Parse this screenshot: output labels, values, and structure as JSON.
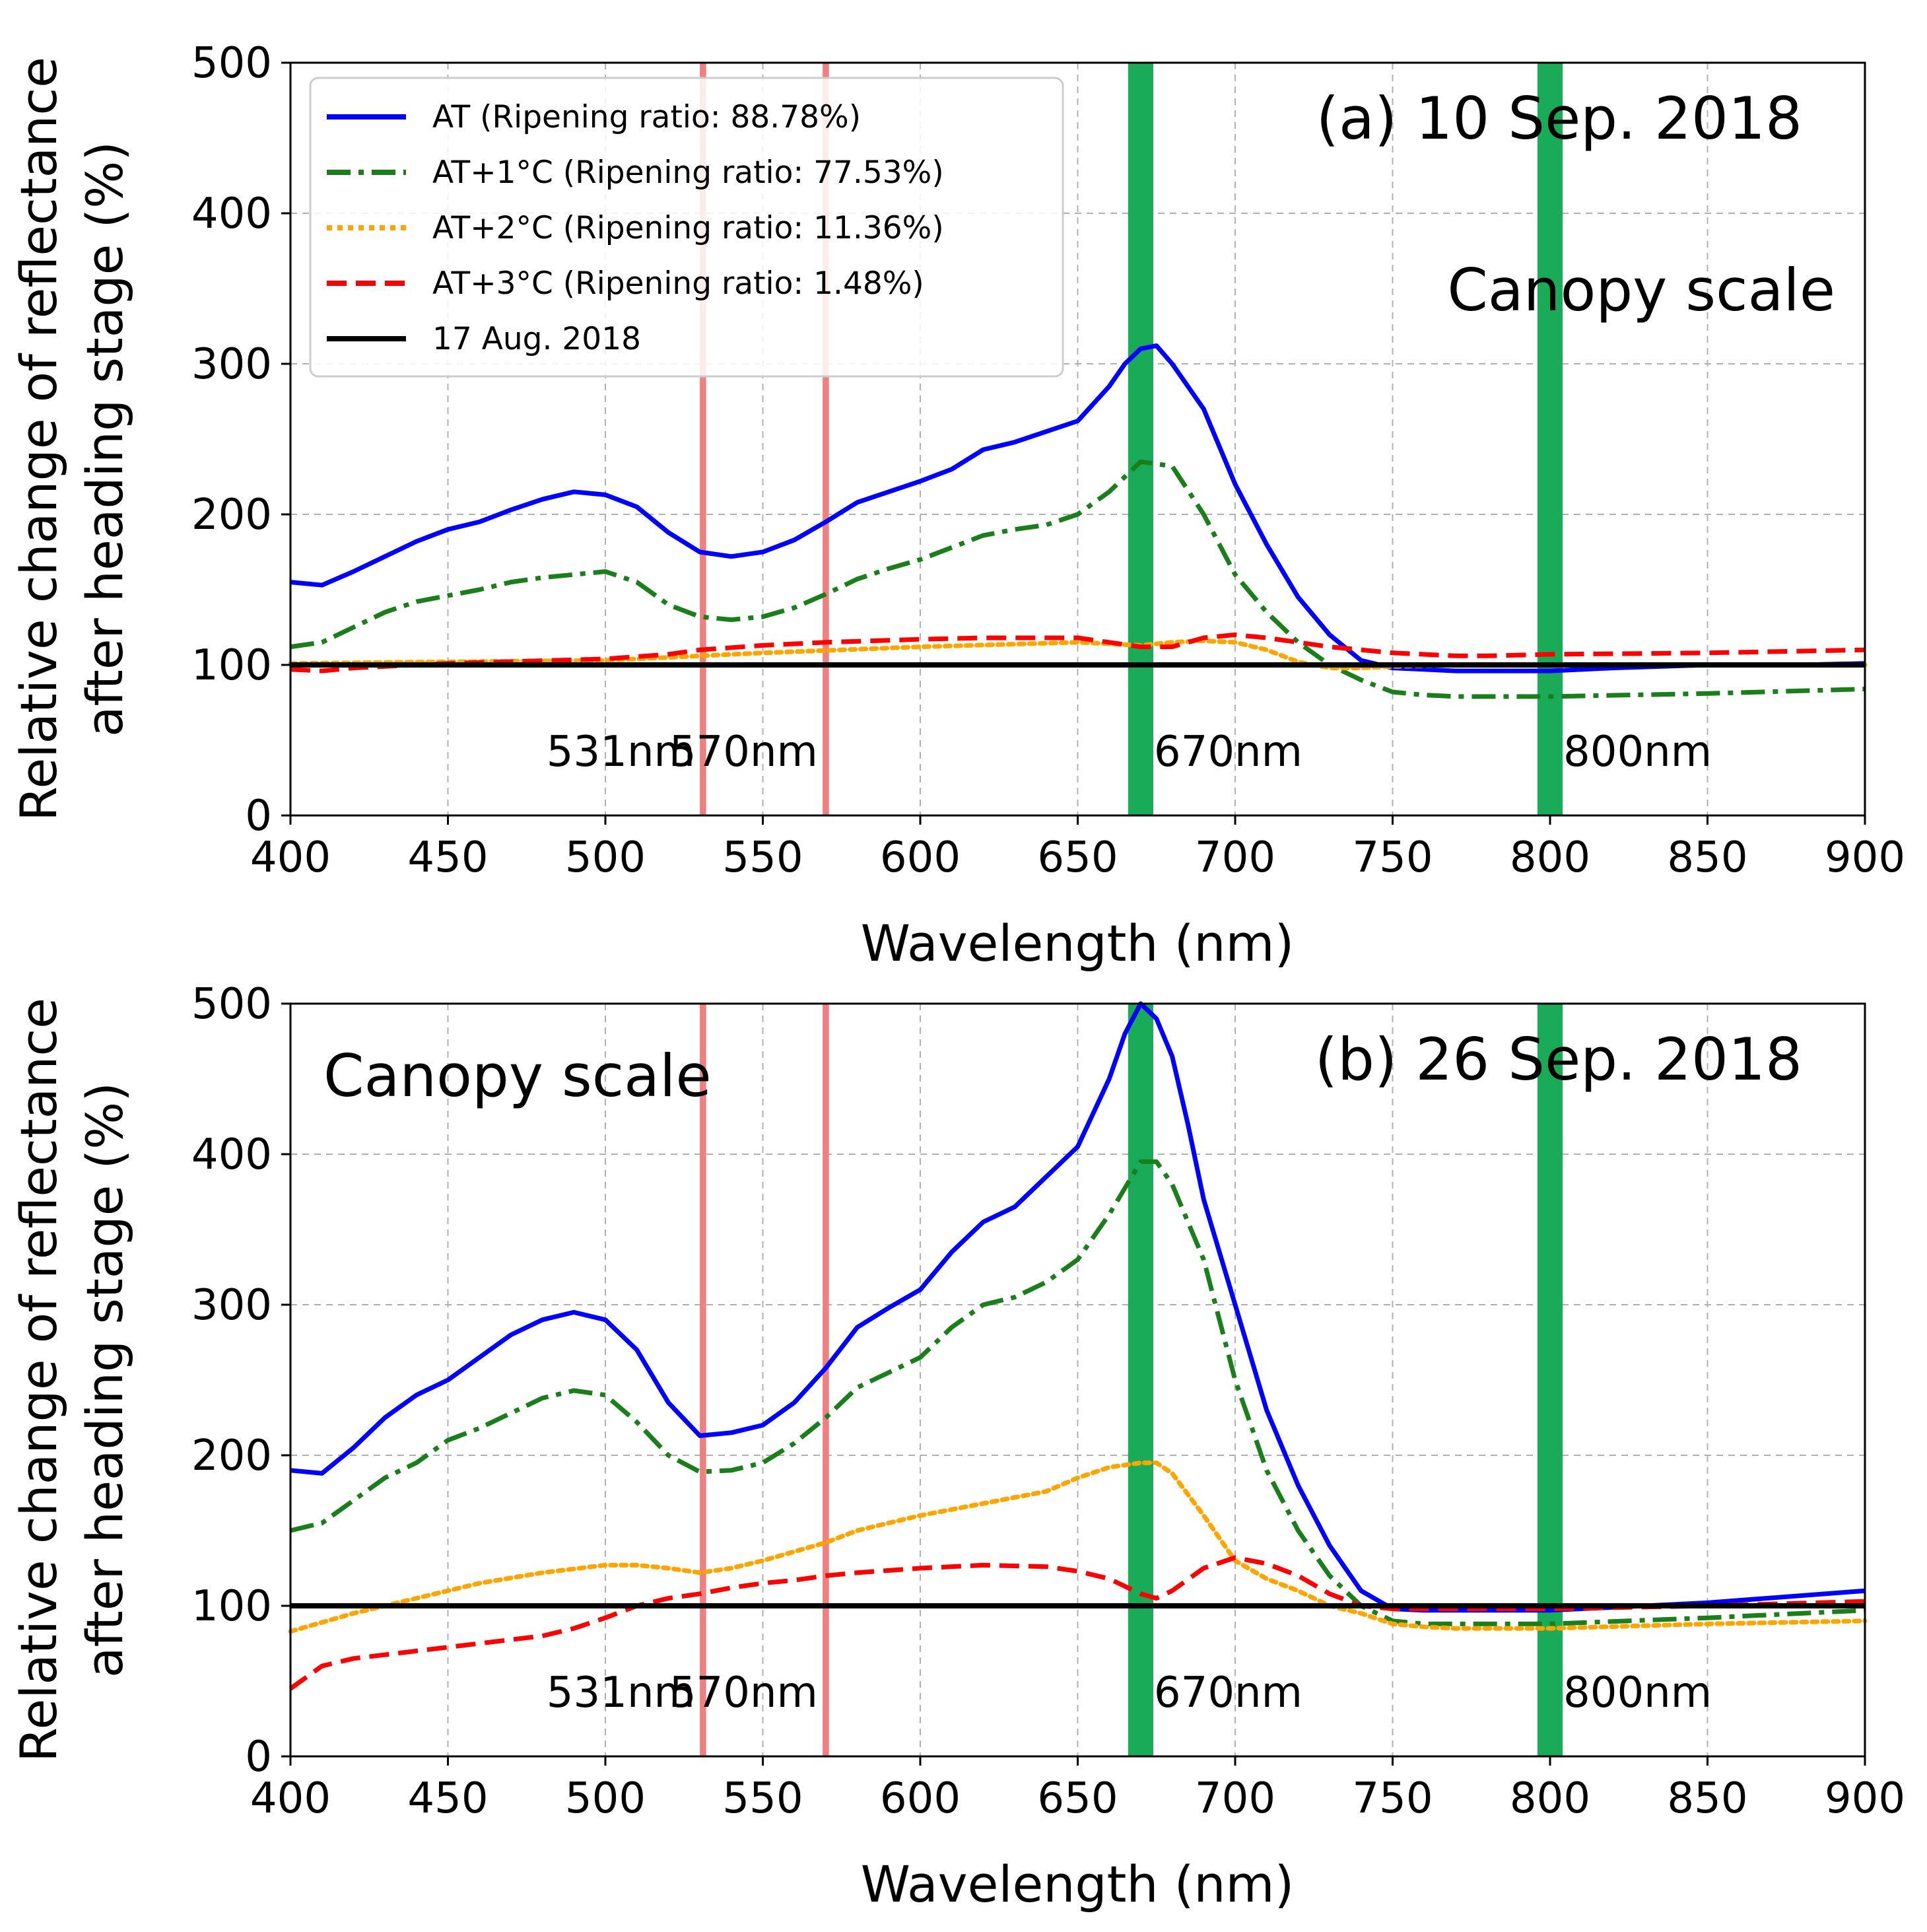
{
  "chart_data": [
    {
      "type": "line",
      "panel": "a",
      "title": "(a) 10 Sep. 2018",
      "annotation": "Canopy scale",
      "annotation_placement": "top-right",
      "xlabel": "Wavelength (nm)",
      "ylabel_line1": "Relative change of reflectance",
      "ylabel_line2": "after heading stage (%)",
      "xlim": [
        400,
        900
      ],
      "ylim": [
        0,
        500
      ],
      "xticks": [
        "400",
        "450",
        "500",
        "550",
        "600",
        "650",
        "700",
        "750",
        "800",
        "850",
        "900"
      ],
      "yticks": [
        "0",
        "100",
        "200",
        "300",
        "400",
        "500"
      ],
      "grid": true,
      "legend_placement": "top-left",
      "bands": [
        {
          "center": 531,
          "width": 2,
          "color": "#f08080",
          "label": "531nm"
        },
        {
          "center": 570,
          "width": 2,
          "color": "#f08080",
          "label": "570nm"
        },
        {
          "center": 670,
          "width": 8,
          "color": "#1aab58",
          "label": "670nm"
        },
        {
          "center": 800,
          "width": 8,
          "color": "#1aab58",
          "label": "800nm"
        }
      ],
      "series": [
        {
          "name": "AT (Ripening ratio: 88.78%)",
          "color": "#0000ff",
          "dash": "solid",
          "x": [
            400,
            410,
            420,
            430,
            440,
            450,
            460,
            470,
            480,
            490,
            500,
            510,
            520,
            530,
            540,
            550,
            560,
            570,
            580,
            590,
            600,
            610,
            620,
            630,
            640,
            650,
            660,
            665,
            670,
            675,
            680,
            690,
            700,
            710,
            720,
            730,
            740,
            750,
            760,
            770,
            780,
            790,
            800,
            820,
            850,
            880,
            900
          ],
          "y": [
            155,
            153,
            162,
            172,
            182,
            190,
            195,
            203,
            210,
            215,
            213,
            205,
            188,
            175,
            172,
            175,
            183,
            195,
            208,
            215,
            222,
            230,
            243,
            248,
            255,
            262,
            285,
            300,
            310,
            312,
            300,
            270,
            220,
            180,
            145,
            120,
            103,
            98,
            97,
            96,
            96,
            96,
            96,
            98,
            100,
            100,
            101
          ]
        },
        {
          "name": "AT+1°C (Ripening ratio: 77.53%)",
          "color": "#1a7f1a",
          "dash": "dashdot",
          "x": [
            400,
            410,
            420,
            430,
            440,
            450,
            460,
            470,
            480,
            490,
            500,
            510,
            520,
            530,
            540,
            550,
            560,
            570,
            580,
            590,
            600,
            610,
            620,
            630,
            640,
            650,
            660,
            670,
            680,
            690,
            700,
            710,
            720,
            730,
            740,
            750,
            760,
            770,
            800,
            850,
            900
          ],
          "y": [
            112,
            115,
            125,
            135,
            142,
            146,
            150,
            155,
            158,
            160,
            162,
            155,
            140,
            132,
            130,
            132,
            138,
            147,
            157,
            164,
            170,
            178,
            186,
            190,
            193,
            200,
            215,
            235,
            232,
            200,
            160,
            135,
            115,
            100,
            90,
            82,
            80,
            79,
            79,
            81,
            84
          ]
        },
        {
          "name": "AT+2°C (Ripening ratio: 11.36%)",
          "color": "#ffa500",
          "dash": "dotted",
          "x": [
            400,
            450,
            500,
            550,
            600,
            650,
            660,
            670,
            680,
            690,
            700,
            710,
            720,
            730,
            740,
            750,
            770,
            800,
            850,
            900
          ],
          "y": [
            101,
            102,
            103,
            108,
            112,
            115,
            114,
            113,
            115,
            116,
            115,
            110,
            102,
            98,
            98,
            99,
            100,
            100,
            100,
            100
          ]
        },
        {
          "name": "AT+3°C (Ripening ratio: 1.48%)",
          "color": "#ff0000",
          "dash": "dashed",
          "x": [
            400,
            410,
            420,
            450,
            500,
            520,
            530,
            550,
            570,
            600,
            620,
            650,
            660,
            670,
            680,
            690,
            700,
            710,
            720,
            730,
            740,
            750,
            760,
            770,
            780,
            800,
            850,
            900
          ],
          "y": [
            97,
            96,
            98,
            101,
            104,
            107,
            110,
            113,
            115,
            117,
            118,
            118,
            115,
            112,
            112,
            118,
            120,
            118,
            115,
            112,
            110,
            108,
            107,
            106,
            106,
            107,
            108,
            110
          ]
        },
        {
          "name": "17 Aug. 2018",
          "color": "#000000",
          "dash": "solid",
          "x": [
            400,
            900
          ],
          "y": [
            100,
            100
          ]
        }
      ]
    },
    {
      "type": "line",
      "panel": "b",
      "title": "(b) 26 Sep. 2018",
      "annotation": "Canopy scale",
      "annotation_placement": "top-left",
      "xlabel": "Wavelength (nm)",
      "ylabel_line1": "Relative change of reflectance",
      "ylabel_line2": "after heading stage (%)",
      "xlim": [
        400,
        900
      ],
      "ylim": [
        0,
        500
      ],
      "xticks": [
        "400",
        "450",
        "500",
        "550",
        "600",
        "650",
        "700",
        "750",
        "800",
        "850",
        "900"
      ],
      "yticks": [
        "0",
        "100",
        "200",
        "300",
        "400",
        "500"
      ],
      "grid": true,
      "bands": [
        {
          "center": 531,
          "width": 2,
          "color": "#f08080",
          "label": "531nm"
        },
        {
          "center": 570,
          "width": 2,
          "color": "#f08080",
          "label": "570nm"
        },
        {
          "center": 670,
          "width": 8,
          "color": "#1aab58",
          "label": "670nm"
        },
        {
          "center": 800,
          "width": 8,
          "color": "#1aab58",
          "label": "800nm"
        }
      ],
      "series": [
        {
          "name": "AT",
          "color": "#0000ff",
          "dash": "solid",
          "x": [
            400,
            410,
            420,
            430,
            440,
            450,
            460,
            470,
            480,
            490,
            500,
            510,
            520,
            530,
            540,
            550,
            560,
            570,
            580,
            590,
            600,
            610,
            620,
            630,
            640,
            650,
            660,
            665,
            670,
            675,
            680,
            685,
            690,
            700,
            710,
            720,
            730,
            740,
            750,
            760,
            770,
            800,
            850,
            900
          ],
          "y": [
            190,
            188,
            205,
            225,
            240,
            250,
            265,
            280,
            290,
            295,
            290,
            270,
            235,
            213,
            215,
            220,
            235,
            258,
            285,
            298,
            310,
            335,
            355,
            365,
            385,
            405,
            450,
            480,
            500,
            490,
            465,
            420,
            370,
            300,
            230,
            180,
            140,
            110,
            98,
            97,
            97,
            97,
            102,
            110
          ]
        },
        {
          "name": "AT+1°C",
          "color": "#1a7f1a",
          "dash": "dashdot",
          "x": [
            400,
            410,
            420,
            430,
            440,
            450,
            460,
            470,
            480,
            490,
            500,
            510,
            520,
            530,
            540,
            550,
            560,
            570,
            580,
            590,
            600,
            610,
            620,
            630,
            640,
            650,
            660,
            670,
            675,
            680,
            690,
            700,
            710,
            720,
            730,
            740,
            750,
            760,
            770,
            800,
            850,
            900
          ],
          "y": [
            150,
            155,
            170,
            185,
            195,
            210,
            218,
            228,
            238,
            243,
            240,
            222,
            200,
            189,
            190,
            195,
            208,
            225,
            245,
            255,
            265,
            285,
            300,
            305,
            315,
            330,
            360,
            395,
            395,
            380,
            330,
            250,
            190,
            150,
            120,
            100,
            90,
            88,
            88,
            88,
            92,
            97
          ]
        },
        {
          "name": "AT+2°C",
          "color": "#ffa500",
          "dash": "dotted",
          "x": [
            400,
            420,
            440,
            460,
            480,
            500,
            510,
            520,
            530,
            540,
            550,
            560,
            570,
            580,
            590,
            600,
            620,
            640,
            650,
            660,
            670,
            675,
            680,
            690,
            700,
            710,
            720,
            730,
            740,
            750,
            760,
            770,
            800,
            850,
            900
          ],
          "y": [
            83,
            95,
            105,
            115,
            122,
            127,
            127,
            125,
            122,
            125,
            130,
            136,
            142,
            150,
            155,
            160,
            168,
            176,
            185,
            192,
            195,
            195,
            188,
            160,
            130,
            118,
            110,
            100,
            95,
            88,
            86,
            85,
            85,
            88,
            90
          ]
        },
        {
          "name": "AT+3°C",
          "color": "#ff0000",
          "dash": "dashed",
          "x": [
            400,
            410,
            420,
            440,
            460,
            480,
            490,
            500,
            510,
            520,
            530,
            540,
            550,
            560,
            570,
            580,
            600,
            620,
            640,
            650,
            660,
            670,
            675,
            680,
            690,
            700,
            710,
            720,
            730,
            740,
            750,
            760,
            770,
            800,
            850,
            900
          ],
          "y": [
            45,
            60,
            65,
            70,
            75,
            80,
            85,
            92,
            100,
            105,
            108,
            112,
            115,
            117,
            120,
            122,
            125,
            127,
            126,
            123,
            118,
            108,
            105,
            110,
            125,
            132,
            128,
            120,
            108,
            100,
            98,
            98,
            98,
            98,
            100,
            103
          ]
        },
        {
          "name": "17 Aug. 2018",
          "color": "#000000",
          "dash": "solid",
          "x": [
            400,
            900
          ],
          "y": [
            100,
            100
          ]
        }
      ]
    }
  ]
}
